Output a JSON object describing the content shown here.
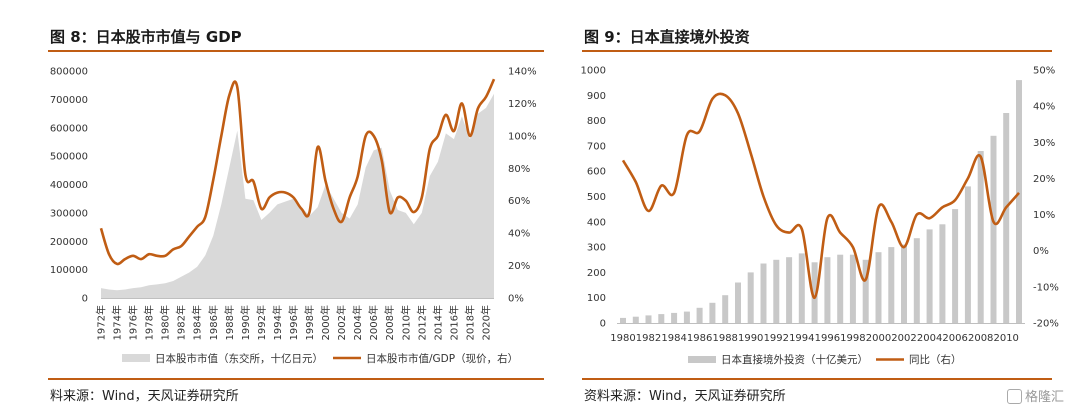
{
  "left": {
    "title": "图 8：日本股市市值与 GDP",
    "source": "料来源：Wind，天风证券研究所"
  },
  "right": {
    "title": "图 9：日本直接境外投资",
    "source": "资料来源：Wind，天风证券研究所"
  },
  "watermark": "格隆汇",
  "colors": {
    "accent": "#c05d14",
    "area": "#d9d9d9",
    "bar": "#c8c8c8"
  },
  "chart_data": [
    {
      "type": "area+line",
      "x_ticks": [
        "1972年",
        "1974年",
        "1976年",
        "1978年",
        "1980年",
        "1982年",
        "1984年",
        "1986年",
        "1988年",
        "1990年",
        "1992年",
        "1994年",
        "1996年",
        "1998年",
        "2000年",
        "2002年",
        "2004年",
        "2006年",
        "2008年",
        "2010年",
        "2012年",
        "2014年",
        "2016年",
        "2018年",
        "2020年"
      ],
      "y_left_ticks": [
        "800000",
        "700000",
        "600000",
        "500000",
        "400000",
        "300000",
        "200000",
        "100000",
        "0"
      ],
      "y_right_ticks": [
        "140%",
        "120%",
        "100%",
        "80%",
        "60%",
        "40%",
        "20%",
        "0%"
      ],
      "y_left_range": [
        0,
        800000
      ],
      "y_right_range": [
        0,
        140
      ],
      "series": [
        {
          "name": "日本股市市值（东交所，十亿日元）",
          "axis": "left",
          "type": "area",
          "x": [
            1972,
            1973,
            1974,
            1975,
            1976,
            1977,
            1978,
            1979,
            1980,
            1981,
            1982,
            1983,
            1984,
            1985,
            1986,
            1987,
            1988,
            1989,
            1990,
            1991,
            1992,
            1993,
            1994,
            1995,
            1996,
            1997,
            1998,
            1999,
            2000,
            2001,
            2002,
            2003,
            2004,
            2005,
            2006,
            2007,
            2008,
            2009,
            2010,
            2011,
            2012,
            2013,
            2014,
            2015,
            2016,
            2017,
            2018,
            2019,
            2020,
            2021
          ],
          "values": [
            35000,
            30000,
            27000,
            30000,
            35000,
            38000,
            45000,
            48000,
            52000,
            60000,
            75000,
            90000,
            110000,
            150000,
            220000,
            330000,
            460000,
            590000,
            350000,
            345000,
            275000,
            300000,
            330000,
            340000,
            350000,
            320000,
            290000,
            320000,
            400000,
            350000,
            300000,
            280000,
            330000,
            460000,
            520000,
            530000,
            380000,
            310000,
            300000,
            260000,
            300000,
            430000,
            480000,
            580000,
            560000,
            640000,
            560000,
            650000,
            670000,
            720000
          ]
        },
        {
          "name": "日本股市市值/GDP（现价，右）",
          "axis": "right",
          "type": "line",
          "x": [
            1972,
            1973,
            1974,
            1975,
            1976,
            1977,
            1978,
            1979,
            1980,
            1981,
            1982,
            1983,
            1984,
            1985,
            1986,
            1987,
            1988,
            1989,
            1990,
            1991,
            1992,
            1993,
            1994,
            1995,
            1996,
            1997,
            1998,
            1999,
            2000,
            2001,
            2002,
            2003,
            2004,
            2005,
            2006,
            2007,
            2008,
            2009,
            2010,
            2011,
            2012,
            2013,
            2014,
            2015,
            2016,
            2017,
            2018,
            2019,
            2020,
            2021
          ],
          "values": [
            43,
            27,
            21,
            24,
            26,
            24,
            27,
            26,
            26,
            30,
            32,
            38,
            44,
            50,
            73,
            100,
            125,
            130,
            76,
            72,
            55,
            62,
            65,
            65,
            62,
            55,
            53,
            93,
            72,
            55,
            47,
            62,
            75,
            100,
            100,
            85,
            53,
            62,
            60,
            53,
            62,
            92,
            100,
            113,
            103,
            120,
            100,
            117,
            124,
            135
          ]
        }
      ]
    },
    {
      "type": "bar+line",
      "x_ticks": [
        "1980",
        "1982",
        "1984",
        "1986",
        "1988",
        "1990",
        "1992",
        "1994",
        "1996",
        "1998",
        "2000",
        "2002",
        "2004",
        "2006",
        "2008",
        "2010"
      ],
      "y_left_ticks": [
        "1000",
        "900",
        "800",
        "700",
        "600",
        "500",
        "400",
        "300",
        "200",
        "100",
        "0"
      ],
      "y_right_ticks": [
        "50%",
        "40%",
        "30%",
        "20%",
        "10%",
        "0%",
        "-10%",
        "-20%"
      ],
      "y_left_range": [
        0,
        1000
      ],
      "y_right_range": [
        -20,
        50
      ],
      "series": [
        {
          "name": "日本直接境外投资（十亿美元）",
          "axis": "left",
          "type": "bar",
          "x": [
            1980,
            1981,
            1982,
            1983,
            1984,
            1985,
            1986,
            1987,
            1988,
            1989,
            1990,
            1991,
            1992,
            1993,
            1994,
            1995,
            1996,
            1997,
            1998,
            1999,
            2000,
            2001,
            2002,
            2003,
            2004,
            2005,
            2006,
            2007,
            2008,
            2009,
            2010,
            2011
          ],
          "values": [
            20,
            25,
            30,
            35,
            40,
            45,
            60,
            80,
            110,
            160,
            200,
            235,
            250,
            260,
            275,
            240,
            260,
            270,
            270,
            250,
            280,
            300,
            310,
            335,
            370,
            390,
            450,
            540,
            680,
            740,
            830,
            960
          ]
        },
        {
          "name": "同比（右）",
          "axis": "right",
          "type": "line",
          "x": [
            1980,
            1981,
            1982,
            1983,
            1984,
            1985,
            1986,
            1987,
            1988,
            1989,
            1990,
            1991,
            1992,
            1993,
            1994,
            1995,
            1996,
            1997,
            1998,
            1999,
            2000,
            2001,
            2002,
            2003,
            2004,
            2005,
            2006,
            2007,
            2008,
            2009,
            2010,
            2011
          ],
          "values": [
            25,
            19,
            11,
            18,
            16,
            32,
            33,
            42,
            43,
            38,
            27,
            15,
            7,
            5,
            6,
            -13,
            9,
            5,
            1,
            -8,
            12,
            8,
            1,
            10,
            9,
            12,
            14,
            20,
            26,
            8,
            12,
            16
          ]
        }
      ]
    }
  ]
}
